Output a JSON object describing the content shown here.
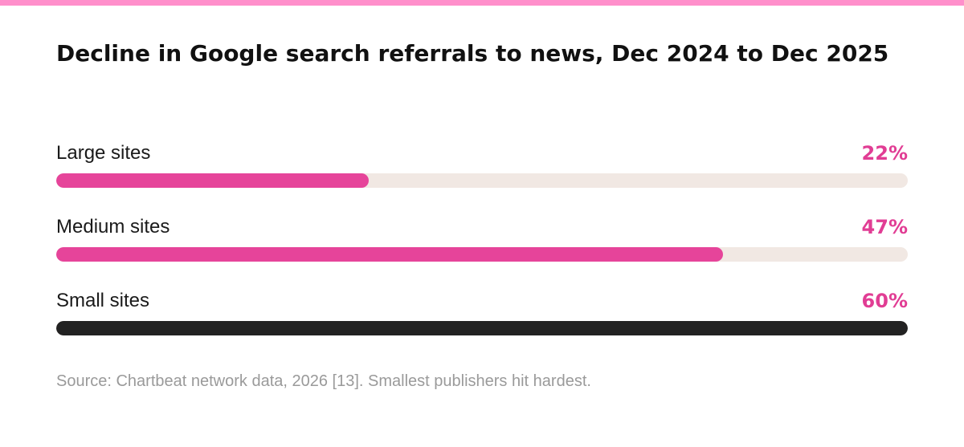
{
  "colors": {
    "accent_bar": "#ff8fcb",
    "pink": "#e6449a",
    "track": "#f1e8e3",
    "dark": "#222222",
    "value_text": "#e13d94"
  },
  "title": "Decline in Google search referrals to news, Dec 2024 to Dec 2025",
  "chart_data": {
    "type": "bar",
    "orientation": "horizontal",
    "title": "Decline in Google search referrals to news, Dec 2024 to Dec 2025",
    "categories": [
      "Large sites",
      "Medium sites",
      "Small sites"
    ],
    "values": [
      22,
      47,
      60
    ],
    "value_labels": [
      "22%",
      "47%",
      "60%"
    ],
    "xlim": [
      0,
      60
    ],
    "bar_colors": [
      "#e6449a",
      "#e6449a",
      "#222222"
    ],
    "grid": false
  },
  "rows": [
    {
      "label": "Large sites",
      "value_label": "22%",
      "value": 22,
      "color": "#e6449a"
    },
    {
      "label": "Medium sites",
      "value_label": "47%",
      "value": 47,
      "color": "#e6449a"
    },
    {
      "label": "Small sites",
      "value_label": "60%",
      "value": 60,
      "color": "#222222"
    }
  ],
  "source": "Source: Chartbeat network data, 2026 [13]. Smallest publishers hit hardest."
}
